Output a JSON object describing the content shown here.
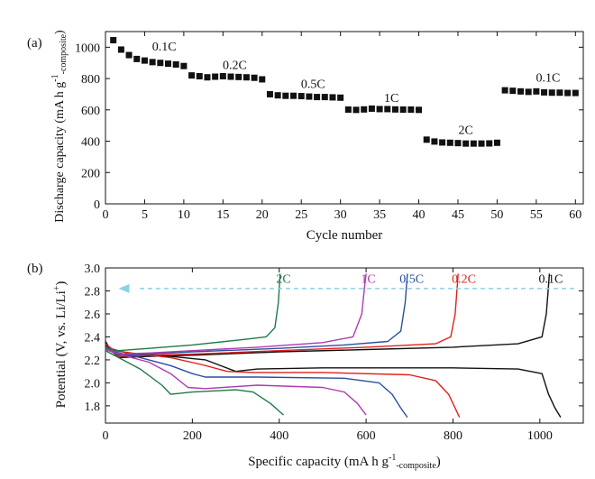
{
  "chart_data": [
    {
      "panel": "(a)",
      "type": "scatter",
      "xlabel": "Cycle number",
      "ylabel_main": "Discharge capacity (mA h g",
      "ylabel_sup": "-1",
      "ylabel_sub": "-composite",
      "ylabel_end": ")",
      "xlim": [
        0,
        61
      ],
      "ylim": [
        0,
        1100
      ],
      "xticks": [
        0,
        5,
        10,
        15,
        20,
        25,
        30,
        35,
        40,
        45,
        50,
        55,
        60
      ],
      "yticks": [
        0,
        200,
        400,
        600,
        800,
        1000
      ],
      "x": [
        1,
        2,
        3,
        4,
        5,
        6,
        7,
        8,
        9,
        10,
        11,
        12,
        13,
        14,
        15,
        16,
        17,
        18,
        19,
        20,
        21,
        22,
        23,
        24,
        25,
        26,
        27,
        28,
        29,
        30,
        31,
        32,
        33,
        34,
        35,
        36,
        37,
        38,
        39,
        40,
        41,
        42,
        43,
        44,
        45,
        46,
        47,
        48,
        49,
        50,
        51,
        52,
        53,
        54,
        55,
        56,
        57,
        58,
        59,
        60
      ],
      "values": [
        1045,
        985,
        950,
        925,
        915,
        905,
        900,
        895,
        890,
        880,
        820,
        815,
        808,
        812,
        815,
        812,
        810,
        808,
        805,
        795,
        700,
        693,
        690,
        690,
        688,
        685,
        682,
        682,
        680,
        678,
        602,
        600,
        603,
        608,
        605,
        605,
        603,
        602,
        602,
        600,
        410,
        398,
        392,
        390,
        388,
        385,
        385,
        385,
        386,
        390,
        725,
        722,
        718,
        715,
        718,
        712,
        710,
        710,
        708,
        708
      ],
      "annotations": [
        {
          "text": "0.1C",
          "x": 7.5,
          "y": 980
        },
        {
          "text": "0.2C",
          "x": 16.5,
          "y": 860
        },
        {
          "text": "0.5C",
          "x": 26.5,
          "y": 740
        },
        {
          "text": "1C",
          "x": 36.5,
          "y": 650
        },
        {
          "text": "2C",
          "x": 46,
          "y": 445
        },
        {
          "text": "0.1C",
          "x": 56.5,
          "y": 780
        }
      ]
    },
    {
      "panel": "(b)",
      "type": "line",
      "xlabel_main": "Specific capacity (mA h g",
      "xlabel_sup": "-1",
      "xlabel_sub": "-composite",
      "xlabel_end": ")",
      "ylabel_main": "Potential (V, vs. Li/Li",
      "ylabel_sup": "+",
      "ylabel_end": ")",
      "xlim": [
        0,
        1100
      ],
      "ylim": [
        1.65,
        3.0
      ],
      "xticks": [
        0,
        200,
        400,
        600,
        800,
        1000
      ],
      "yticks": [
        1.8,
        2.0,
        2.2,
        2.4,
        2.6,
        2.8,
        3.0
      ],
      "arrow_y": 2.82,
      "series": [
        {
          "name": "0.1C",
          "color": "#111111",
          "label_x": 1025,
          "label_y": 2.87,
          "discharge": [
            [
              0,
              2.36
            ],
            [
              10,
              2.3
            ],
            [
              50,
              2.26
            ],
            [
              150,
              2.23
            ],
            [
              230,
              2.2
            ],
            [
              300,
              2.1
            ],
            [
              350,
              2.12
            ],
            [
              500,
              2.13
            ],
            [
              800,
              2.13
            ],
            [
              950,
              2.12
            ],
            [
              1005,
              2.08
            ],
            [
              1020,
              1.9
            ],
            [
              1035,
              1.78
            ],
            [
              1048,
              1.7
            ]
          ],
          "charge": [
            [
              0,
              2.33
            ],
            [
              30,
              2.22
            ],
            [
              100,
              2.23
            ],
            [
              200,
              2.24
            ],
            [
              400,
              2.27
            ],
            [
              600,
              2.29
            ],
            [
              800,
              2.31
            ],
            [
              950,
              2.34
            ],
            [
              1005,
              2.4
            ],
            [
              1015,
              2.6
            ],
            [
              1020,
              2.85
            ],
            [
              1022,
              2.95
            ]
          ]
        },
        {
          "name": "0.2C",
          "color": "#e0201a",
          "label_x": 825,
          "label_y": 2.87,
          "discharge": [
            [
              0,
              2.34
            ],
            [
              20,
              2.28
            ],
            [
              80,
              2.25
            ],
            [
              150,
              2.22
            ],
            [
              220,
              2.16
            ],
            [
              280,
              2.1
            ],
            [
              340,
              2.09
            ],
            [
              500,
              2.09
            ],
            [
              700,
              2.07
            ],
            [
              760,
              2.02
            ],
            [
              790,
              1.9
            ],
            [
              805,
              1.78
            ],
            [
              815,
              1.7
            ]
          ],
          "charge": [
            [
              0,
              2.31
            ],
            [
              30,
              2.23
            ],
            [
              100,
              2.24
            ],
            [
              200,
              2.25
            ],
            [
              400,
              2.28
            ],
            [
              600,
              2.31
            ],
            [
              760,
              2.34
            ],
            [
              795,
              2.4
            ],
            [
              805,
              2.6
            ],
            [
              810,
              2.85
            ],
            [
              812,
              2.95
            ]
          ]
        },
        {
          "name": "0.5C",
          "color": "#2a4fa0",
          "label_x": 705,
          "label_y": 2.87,
          "discharge": [
            [
              0,
              2.32
            ],
            [
              20,
              2.27
            ],
            [
              80,
              2.22
            ],
            [
              150,
              2.15
            ],
            [
              200,
              2.08
            ],
            [
              230,
              2.05
            ],
            [
              350,
              2.05
            ],
            [
              550,
              2.04
            ],
            [
              630,
              2.0
            ],
            [
              660,
              1.9
            ],
            [
              680,
              1.78
            ],
            [
              695,
              1.7
            ]
          ],
          "charge": [
            [
              0,
              2.3
            ],
            [
              30,
              2.24
            ],
            [
              100,
              2.25
            ],
            [
              200,
              2.27
            ],
            [
              400,
              2.3
            ],
            [
              550,
              2.33
            ],
            [
              650,
              2.36
            ],
            [
              680,
              2.45
            ],
            [
              690,
              2.7
            ],
            [
              695,
              2.95
            ]
          ]
        },
        {
          "name": "1C",
          "color": "#b03ab0",
          "label_x": 605,
          "label_y": 2.87,
          "discharge": [
            [
              0,
              2.3
            ],
            [
              30,
              2.25
            ],
            [
              100,
              2.18
            ],
            [
              150,
              2.08
            ],
            [
              190,
              1.96
            ],
            [
              230,
              1.95
            ],
            [
              350,
              1.98
            ],
            [
              500,
              1.96
            ],
            [
              550,
              1.92
            ],
            [
              580,
              1.82
            ],
            [
              600,
              1.72
            ]
          ],
          "charge": [
            [
              0,
              2.29
            ],
            [
              30,
              2.25
            ],
            [
              100,
              2.26
            ],
            [
              200,
              2.28
            ],
            [
              350,
              2.31
            ],
            [
              500,
              2.35
            ],
            [
              570,
              2.4
            ],
            [
              590,
              2.6
            ],
            [
              597,
              2.85
            ],
            [
              600,
              2.95
            ]
          ]
        },
        {
          "name": "2C",
          "color": "#1e7a4a",
          "label_x": 410,
          "label_y": 2.87,
          "discharge": [
            [
              0,
              2.28
            ],
            [
              30,
              2.22
            ],
            [
              80,
              2.12
            ],
            [
              130,
              1.98
            ],
            [
              150,
              1.9
            ],
            [
              200,
              1.92
            ],
            [
              300,
              1.94
            ],
            [
              340,
              1.92
            ],
            [
              380,
              1.82
            ],
            [
              410,
              1.72
            ]
          ],
          "charge": [
            [
              0,
              2.3
            ],
            [
              30,
              2.28
            ],
            [
              100,
              2.3
            ],
            [
              200,
              2.33
            ],
            [
              300,
              2.37
            ],
            [
              370,
              2.4
            ],
            [
              390,
              2.48
            ],
            [
              398,
              2.7
            ],
            [
              402,
              2.95
            ]
          ]
        }
      ]
    }
  ]
}
